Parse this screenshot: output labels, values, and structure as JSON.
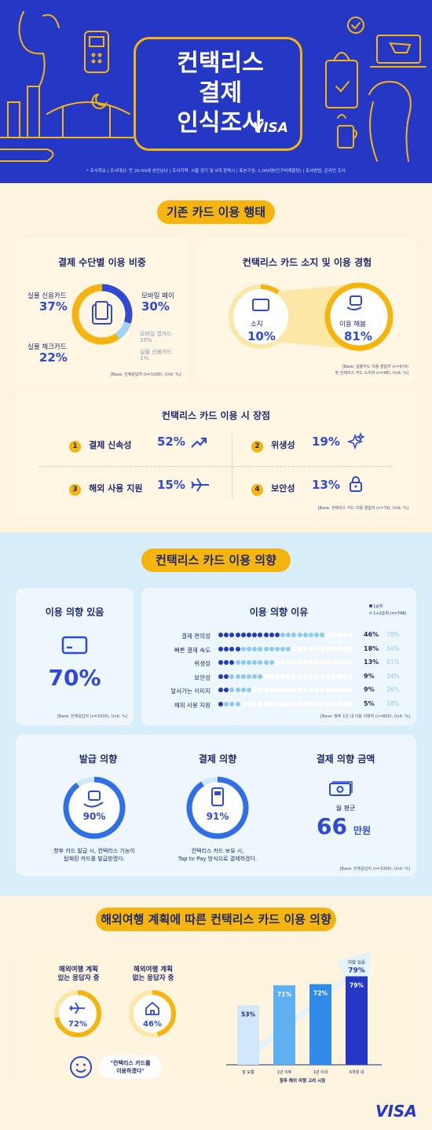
{
  "header": {
    "title_line1": "컨택리스",
    "title_line2": "결제",
    "title_line3": "인식조사",
    "brand": "VISA",
    "survey_note": "* 조사개요 | 조사대상: 만 20-59세 성인남녀 | 조사지역: 서울 경기 및 5대 광역시 | 표본구성: 1,000명(인구비례할당) | 조사방법: 온라인 조사"
  },
  "sec1": {
    "title": "기존 카드 이용 행태",
    "payment": {
      "title": "결제 수단별 이용 비중",
      "items": [
        {
          "label": "실물 신용카드",
          "value": "37%"
        },
        {
          "label": "모바일 페이",
          "value": "30%"
        },
        {
          "label": "실물 체크카드",
          "value": "22%"
        },
        {
          "label": "모바일 앱카드",
          "value": "10%"
        },
        {
          "label": "실물 선불카드",
          "value": "1%"
        }
      ],
      "base": "[Base: 전체응답자 (n=1000), Unit: %]"
    },
    "experience": {
      "title": "컨택리스 카드 소지 및 이용 경험",
      "own_label": "소지",
      "own_value": "10%",
      "use_label": "이용 해봄",
      "use_value": "81%",
      "base1": "[Base: 실물카드 이용 경험자 (n=974)",
      "base2": "및 컨택리스 카드 소지자 (n=98), Unit: %]"
    },
    "merits": {
      "title": "컨택리스 카드 이용 시 장점",
      "items": [
        {
          "n": "1",
          "label": "결제 신속성",
          "value": "52%"
        },
        {
          "n": "2",
          "label": "위생성",
          "value": "19%"
        },
        {
          "n": "3",
          "label": "해외 사용 지원",
          "value": "15%"
        },
        {
          "n": "4",
          "label": "보안성",
          "value": "13%"
        }
      ],
      "base": "[Base: 컨택리스 카드 이용 경험자 (n=79), Unit: %]"
    }
  },
  "sec2": {
    "title": "컨택리스 카드 이용 의향",
    "intent": {
      "title": "이용 의향 있음",
      "value": "70%",
      "base": "[Base: 전체응답자 (n=1000), Unit: %]"
    },
    "reasons": {
      "title": "이용 의향 이유",
      "legend1": "1순위",
      "legend2": "1+2순위 (n=748)",
      "items": [
        {
          "label": "결제 편의성",
          "v1": "46%",
          "v2": "78%",
          "d1": 11,
          "d2": 19
        },
        {
          "label": "빠른 결제 속도",
          "v1": "18%",
          "v2": "54%",
          "d1": 4,
          "d2": 13
        },
        {
          "label": "위생성",
          "v1": "13%",
          "v2": "41%",
          "d1": 3,
          "d2": 10
        },
        {
          "label": "보안성",
          "v1": "9%",
          "v2": "34%",
          "d1": 2,
          "d2": 8
        },
        {
          "label": "앞서가는 이미지",
          "v1": "9%",
          "v2": "26%",
          "d1": 2,
          "d2": 6
        },
        {
          "label": "해외 사용 지원",
          "v1": "5%",
          "v2": "18%",
          "d1": 1,
          "d2": 4
        }
      ],
      "base": "[Base: 향후 1년 내 이용 의향자 (n=800), Unit: %]"
    },
    "issue": {
      "title": "발급 의향",
      "value": "90%",
      "pct": 0.9,
      "desc1": "향후 카드 발급 시, 컨택리스 기능이",
      "desc2": "탑재된 카드를 발급받겠다."
    },
    "pay": {
      "title": "결제 의향",
      "value": "91%",
      "pct": 0.91,
      "desc1": "컨택리스 카드 보유 시,",
      "desc2": "Tap to Pay 방식으로 결제하겠다."
    },
    "amount": {
      "title": "결제 의향 금액",
      "sub": "월 평균",
      "value": "66",
      "unit": "만원"
    },
    "base2": "[Base: 전체응답자 (n=1000), Unit: %]"
  },
  "sec3": {
    "title": "해외여행 계획에 따른 컨택리스 카드 이용 의향",
    "with": {
      "line1": "해외여행 계획",
      "line2": "있는 응답자 중",
      "value": "72%",
      "pct": 0.72
    },
    "without": {
      "line1": "해외여행 계획",
      "line2": "없는 응답자 중",
      "value": "46%",
      "pct": 0.46
    },
    "quote1": "\"컨택리스 카드를",
    "quote2": "이용하겠다\"",
    "bar_label": "의향 있음",
    "chart_data": {
      "type": "bar",
      "categories": [
        "잘 모름",
        "1년 이후",
        "1년 이내",
        "6개월 내"
      ],
      "values": [
        53,
        71,
        72,
        79
      ],
      "labels": [
        "53%",
        "71%",
        "72%",
        "79%"
      ],
      "xlabel": "향후 해외 여행 고려 시점",
      "ylim": [
        0,
        100
      ]
    },
    "brand": "VISA"
  },
  "colors": {
    "navy": "#1f2a6e",
    "blue": "#2f4ad6",
    "yellow": "#f5b50e",
    "light": "#9ed3f7"
  }
}
